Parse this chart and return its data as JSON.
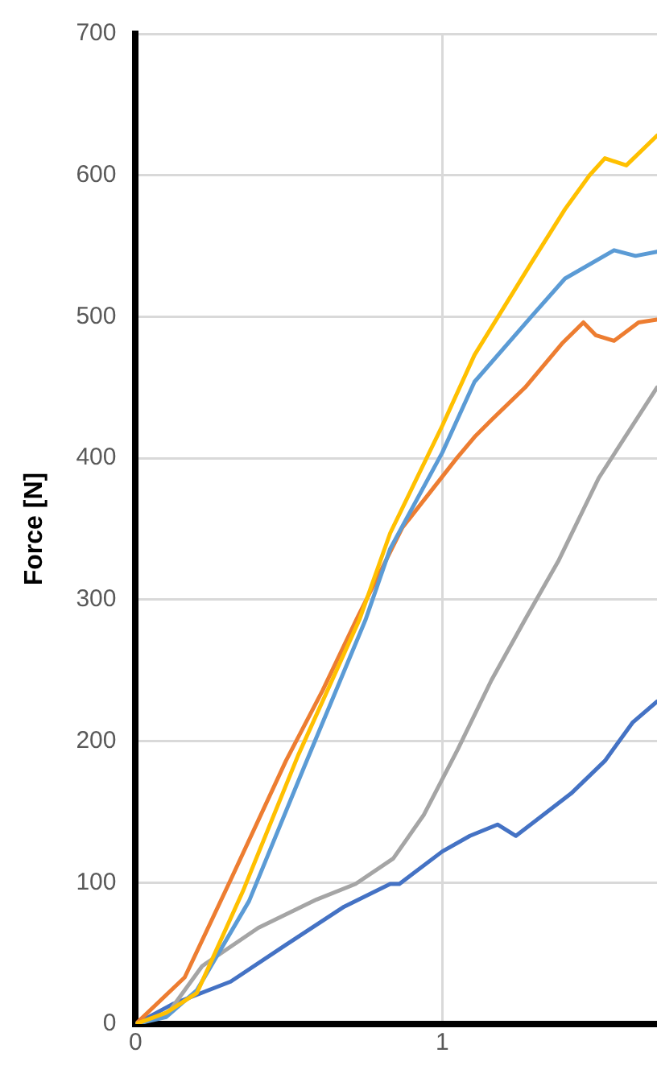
{
  "chart_data": {
    "type": "line",
    "ylabel": "Force [N]",
    "xlim": [
      0,
      1.7
    ],
    "xticks": [
      0,
      1
    ],
    "ylim": [
      0,
      700
    ],
    "yticks": [
      0,
      100,
      200,
      300,
      400,
      500,
      600,
      700
    ],
    "grid": true,
    "legend": false,
    "marker": "none",
    "line_style": "solid",
    "series": [
      {
        "color": "#ffc000",
        "x": [
          0,
          0.1,
          0.2,
          0.35,
          0.53,
          0.73,
          0.83,
          1.0,
          1.105,
          1.29,
          1.4,
          1.48,
          1.53,
          1.6,
          1.7
        ],
        "values": [
          0,
          8,
          22,
          94,
          190,
          286,
          347,
          423,
          473,
          538,
          576,
          600,
          612,
          607,
          628
        ]
      },
      {
        "color": "#5b9bd5",
        "x": [
          0,
          0.1,
          0.2,
          0.37,
          0.55,
          0.75,
          0.83,
          1.0,
          1.105,
          1.29,
          1.4,
          1.56,
          1.63,
          1.7
        ],
        "values": [
          0,
          5,
          24,
          87,
          182,
          286,
          336,
          404,
          454,
          500,
          527,
          547,
          543,
          546
        ]
      },
      {
        "color": "#ed7d31",
        "x": [
          0,
          0.16,
          0.31,
          0.49,
          0.61,
          0.72,
          0.87,
          1.047,
          1.105,
          1.16,
          1.27,
          1.39,
          1.46,
          1.5,
          1.56,
          1.64,
          1.7
        ],
        "values": [
          0,
          33,
          102,
          186,
          236,
          286,
          351,
          400,
          415,
          427,
          450,
          481,
          496,
          487,
          483,
          496,
          498
        ]
      },
      {
        "color": "#a5a5a5",
        "x": [
          0,
          0.1,
          0.217,
          0.4,
          0.59,
          0.717,
          0.84,
          0.94,
          1.05,
          1.16,
          1.27,
          1.38,
          1.51,
          1.7
        ],
        "values": [
          0,
          6,
          41,
          68,
          88,
          99,
          117,
          148,
          194,
          243,
          286,
          328,
          386,
          450
        ]
      },
      {
        "color": "#4472c4",
        "x": [
          0,
          0.12,
          0.31,
          0.49,
          0.68,
          0.83,
          0.86,
          1.0,
          1.09,
          1.18,
          1.24,
          1.42,
          1.53,
          1.62,
          1.7
        ],
        "values": [
          0,
          14,
          30,
          56,
          83,
          99,
          99,
          122,
          133,
          141,
          133,
          163,
          186,
          213,
          228
        ]
      }
    ]
  }
}
